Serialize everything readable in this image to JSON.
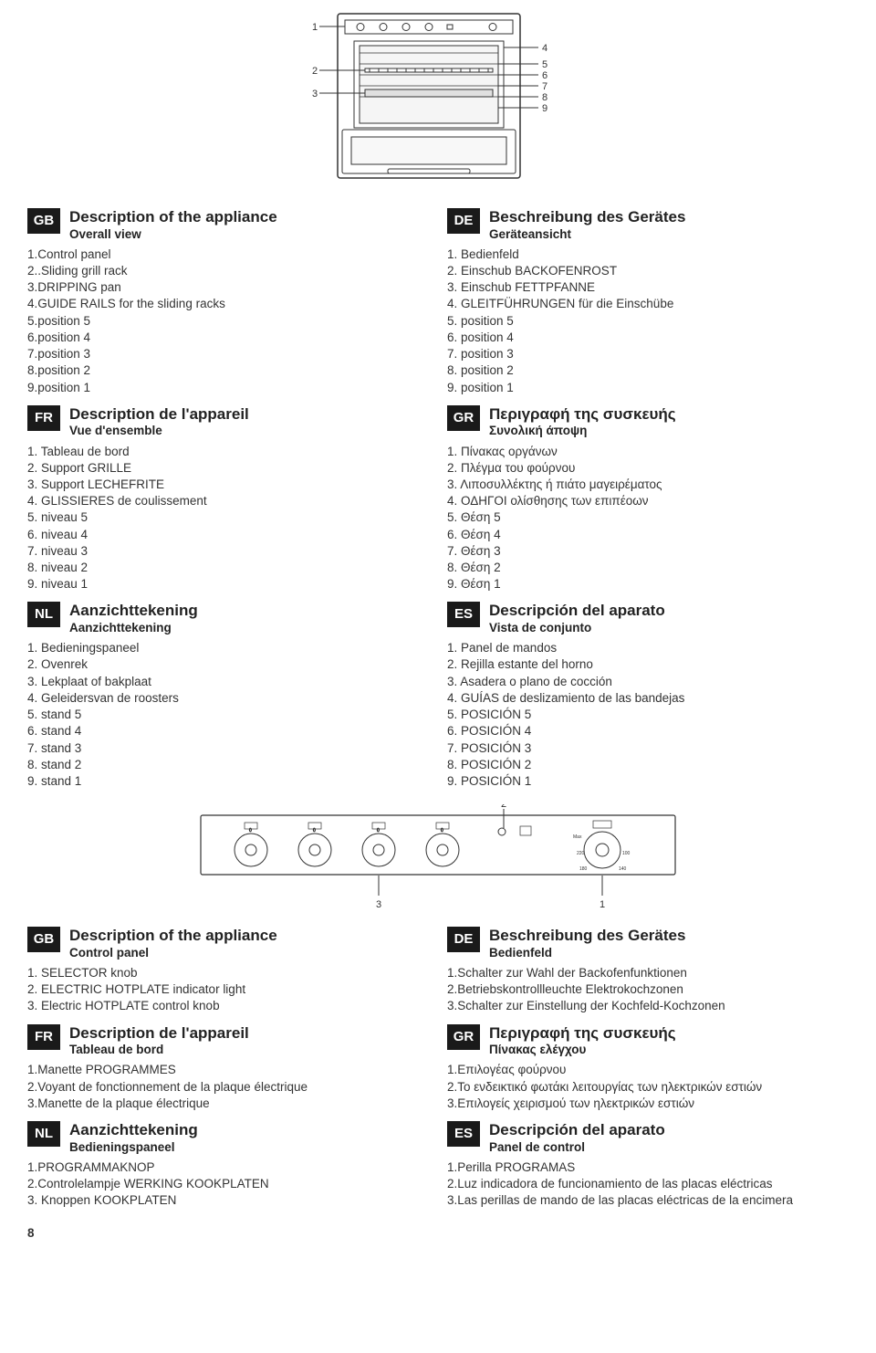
{
  "pageNumber": "8",
  "ovenDiagram": {
    "callouts": {
      "1": "1",
      "2": "2",
      "3": "3",
      "4": "4",
      "5": "5",
      "6": "6",
      "7": "7",
      "8": "8",
      "9": "9"
    }
  },
  "panelDiagram": {
    "callouts": {
      "1": "1",
      "2": "2",
      "3": "3"
    }
  },
  "leftCol": [
    {
      "badge": "GB",
      "title": "Description of the appliance",
      "subtitle": "Overall view",
      "items": [
        "1.Control panel",
        "2..Sliding grill rack",
        "3.DRIPPING pan",
        "4.GUIDE RAILS for the sliding racks",
        "5.position 5",
        "6.position 4",
        "7.position 3",
        "8.position 2",
        "9.position 1"
      ]
    },
    {
      "badge": "FR",
      "title": "Description de l'appareil",
      "subtitle": "Vue d'ensemble",
      "items": [
        "1.  Tableau de bord",
        "2.  Support GRILLE",
        "3.  Support  LECHEFRITE",
        "4.  GLISSIERES de coulissement",
        "5.  niveau 5",
        "6.  niveau 4",
        "7.  niveau 3",
        "8. niveau 2",
        "9. niveau 1"
      ]
    },
    {
      "badge": "NL",
      "title": "Aanzichttekening",
      "subtitle": "Aanzichttekening",
      "items": [
        "1.  Bedieningspaneel",
        "2.   Ovenrek",
        "3.  Lekplaat of bakplaat",
        "4.  Geleidersvan de roosters",
        "5.  stand 5",
        "6.  stand 4",
        "7.  stand 3",
        "8.  stand 2",
        "9.  stand 1"
      ]
    }
  ],
  "rightCol": [
    {
      "badge": "DE",
      "title": "Beschreibung des Gerätes",
      "subtitle": "Geräteansicht",
      "items": [
        "1. Bedienfeld",
        "2. Einschub BACKOFENROST",
        "3. Einschub FETTPFANNE",
        "4. GLEITFÜHRUNGEN für die Einschübe",
        "5.  position 5",
        "6.  position 4",
        "7.  position 3",
        "8.  position 2",
        "9. position 1"
      ]
    },
    {
      "badge": "GR",
      "title": "Περιγραφή της συσκευής",
      "subtitle": "Συνολική άποψη",
      "items": [
        "1.  Πίνακας οργάνων",
        "2.  Πλέγμα του φούρνου",
        "3.  Λιποσυλλέκτης ή πιάτο μαγειρέματος",
        "4.  ΟΔΗΓΟΙ ολίσθησης των επιπέοων",
        "5.  Θέση 5",
        "6.  Θέση 4",
        "7.  Θέση 3",
        "8.  Θέση 2",
        "9.  Θέση 1"
      ]
    },
    {
      "badge": "ES",
      "title": "Descripción del aparato",
      "subtitle": "Vista de conjunto",
      "items": [
        "1. Panel de mandos",
        "2. Rejilla estante del horno",
        "3. Asadera o plano de cocción",
        "4. GUÍAS de deslizamiento de las bandejas",
        "5. POSICIÓN 5",
        "6. POSICIÓN 4",
        "7. POSICIÓN 3",
        "8. POSICIÓN 2",
        "9. POSICIÓN 1"
      ]
    }
  ],
  "leftCol2": [
    {
      "badge": "GB",
      "title": "Description of the appliance",
      "subtitle": "Control panel",
      "items": [
        "1. SELECTOR knob",
        "2. ELECTRIC HOTPLATE indicator light",
        "3. Electric HOTPLATE control knob"
      ]
    },
    {
      "badge": "FR",
      "title": "Description de l'appareil",
      "subtitle": "Tableau de bord",
      "items": [
        "1.Manette PROGRAMMES",
        "2.Voyant de fonctionnement de la plaque électrique",
        "3.Manette de la plaque électrique"
      ]
    },
    {
      "badge": "NL",
      "title": "Aanzichttekening",
      "subtitle": "Bedieningspaneel",
      "items": [
        "1.PROGRAMMAKNOP",
        "2.Controlelampje WERKING KOOKPLATEN",
        "3. Knoppen KOOKPLATEN"
      ]
    }
  ],
  "rightCol2": [
    {
      "badge": "DE",
      "title": "Beschreibung des Gerätes",
      "subtitle": "Bedienfeld",
      "items": [
        "1.Schalter zur Wahl der Backofenfunktionen",
        "2.Betriebskontrollleuchte Elektrokochzonen",
        "3.Schalter zur Einstellung der Kochfeld-Kochzonen"
      ]
    },
    {
      "badge": "GR",
      "title": "Περιγραφή της συσκευής",
      "subtitle": "Πίνακας ελέγχου",
      "items": [
        "1.Επιλογέας φούρνου",
        "2.Το ενδεικτικό φωτάκι λειτουργίας των ηλεκτρικών εστιών",
        "3.Επιλογείς χειρισμού των ηλεκτρικών εστιών"
      ]
    },
    {
      "badge": "ES",
      "title": "Descripción del aparato",
      "subtitle": "Panel de control",
      "items": [
        "1.Perilla PROGRAMAS",
        "2.Luz indicadora de funcionamiento de las placas eléctricas",
        "3.Las perillas de mando de las placas eléctricas de la encimera"
      ]
    }
  ]
}
